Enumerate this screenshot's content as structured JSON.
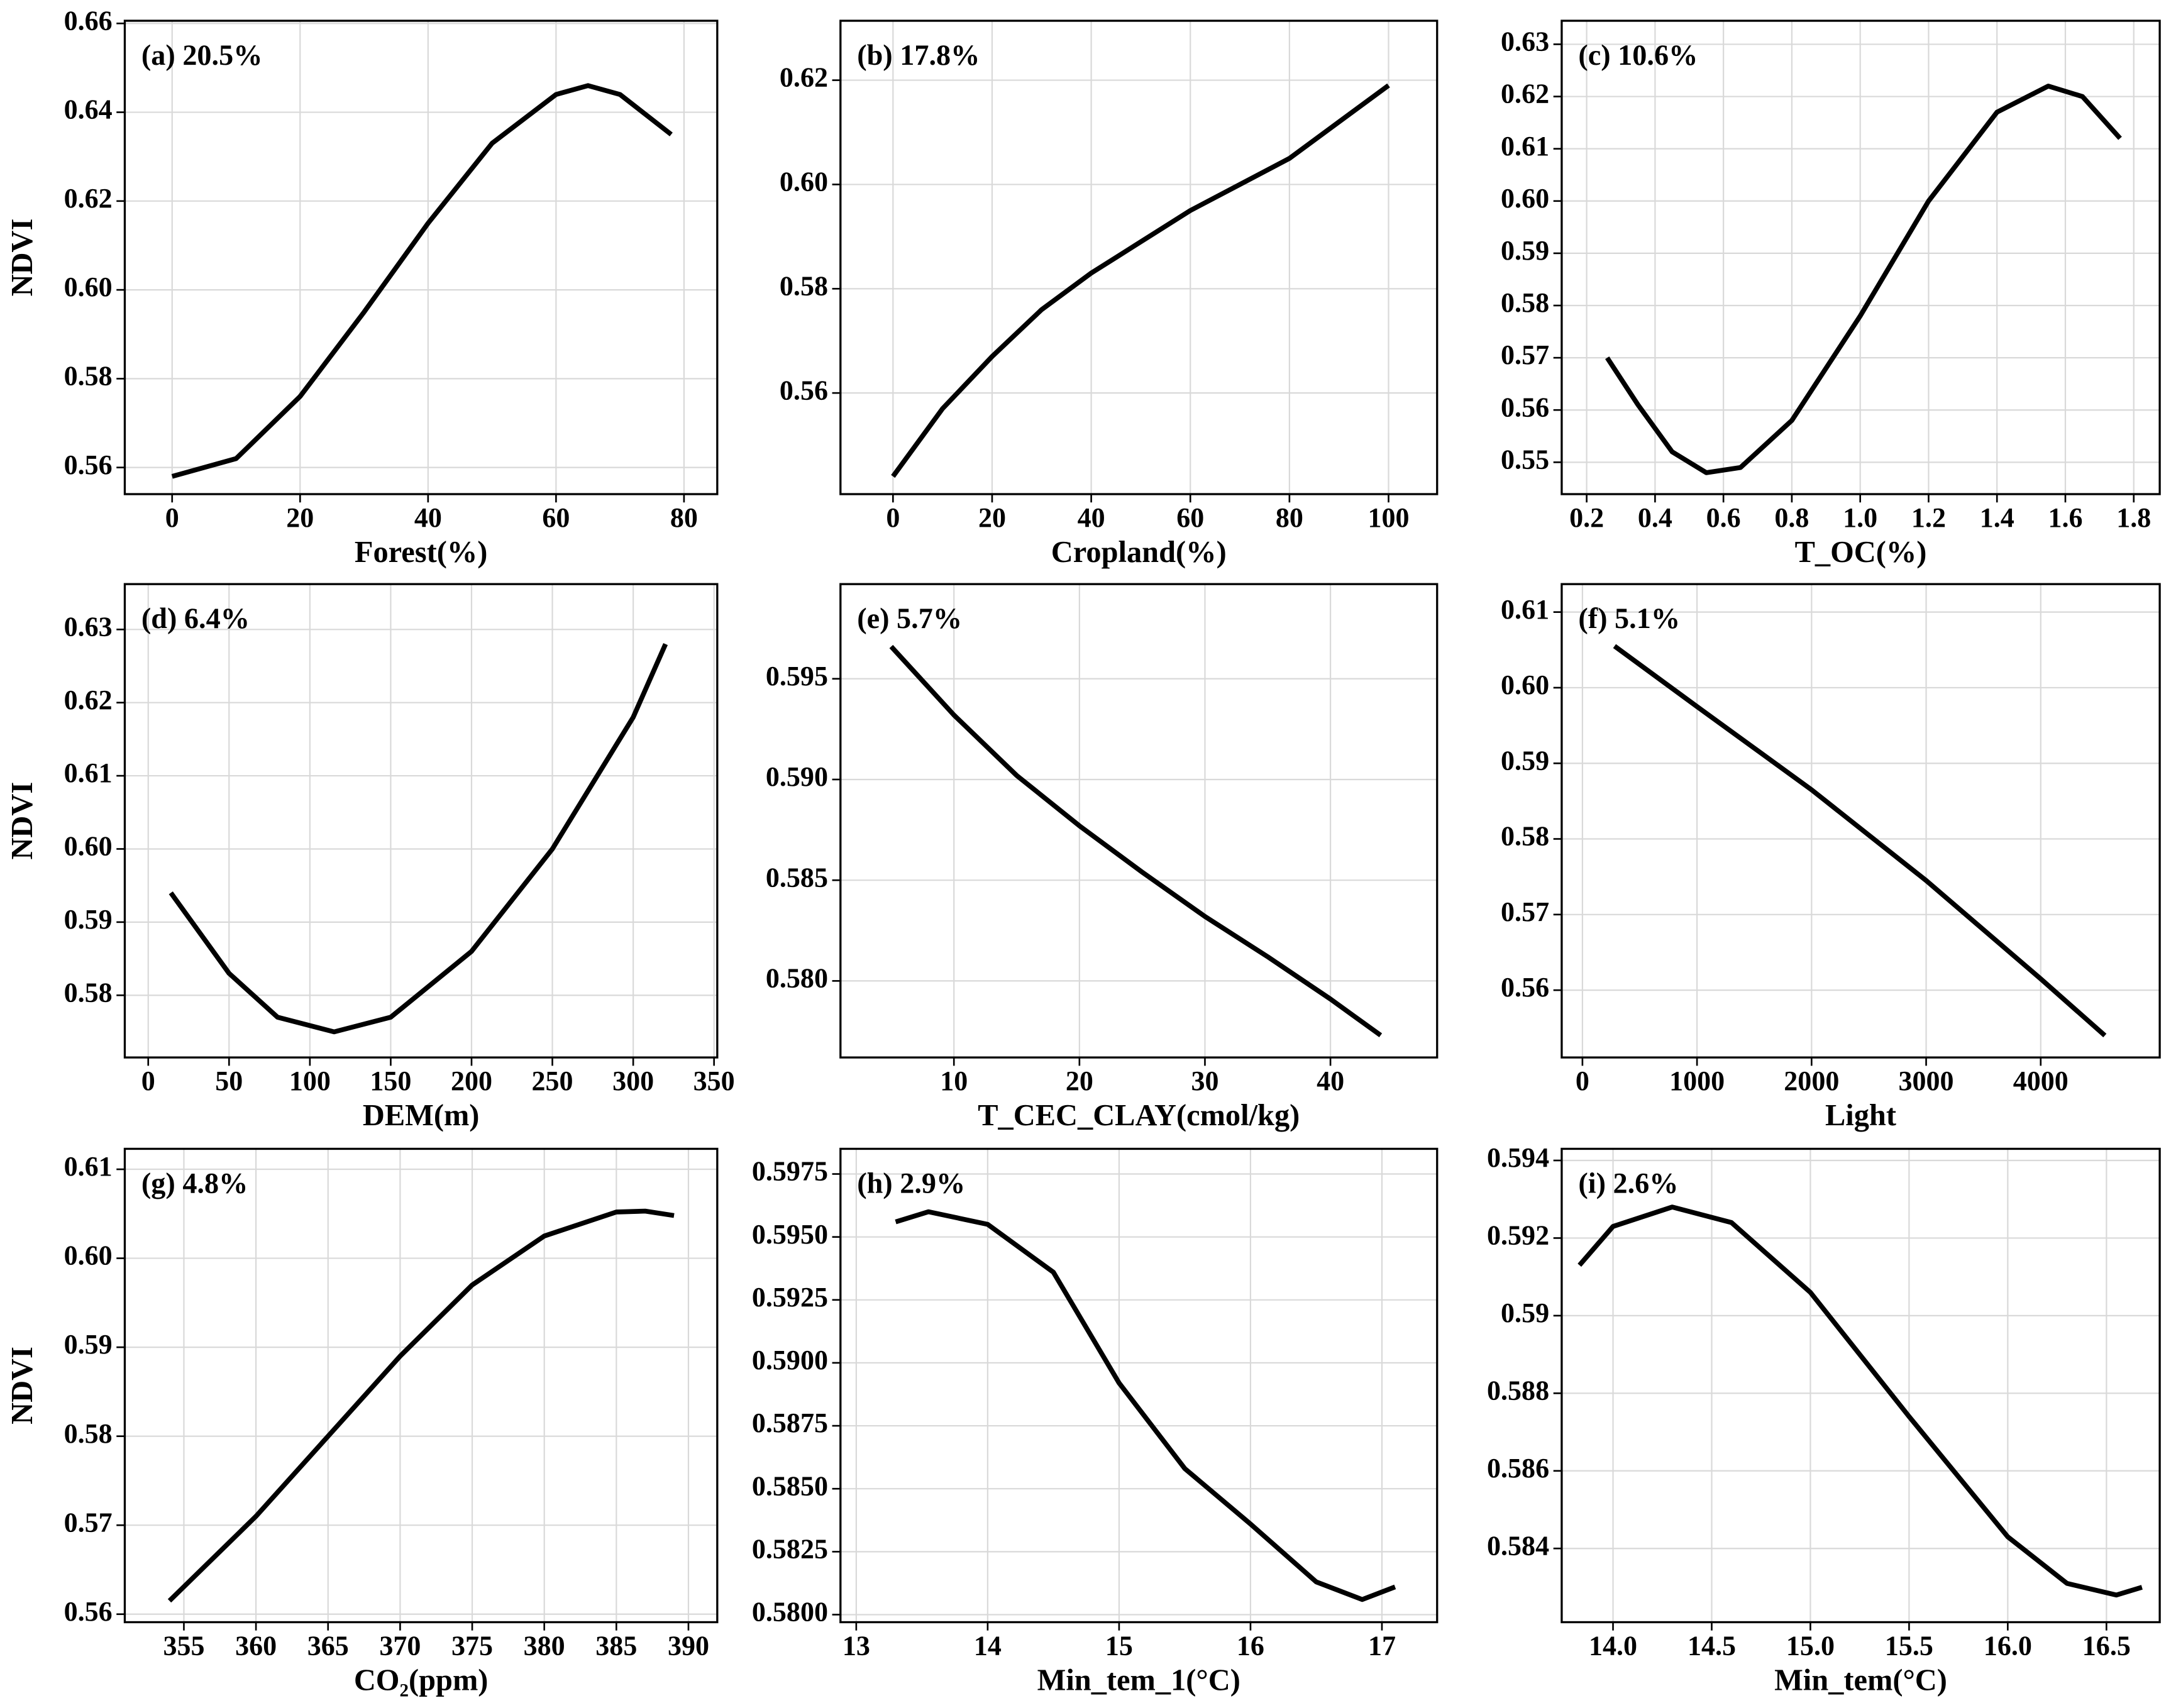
{
  "chart_data": [
    {
      "type": "line",
      "annotation": "(a) 20.5%",
      "xlabel": "Forest(%)",
      "ylabel": "NDVI",
      "color": "#000000",
      "grid": true,
      "x": [
        0,
        10,
        20,
        30,
        40,
        50,
        60,
        65,
        70,
        78
      ],
      "values": [
        0.558,
        0.562,
        0.576,
        0.595,
        0.615,
        0.633,
        0.644,
        0.646,
        0.644,
        0.635
      ],
      "xlim": [
        -7.4,
        85.2
      ],
      "ylim": [
        0.554,
        0.6606
      ],
      "xticks": [
        0,
        20,
        40,
        60,
        80
      ],
      "yticks": [
        0.56,
        0.58,
        {
          "value": 0.6,
          "label": "0.60"
        },
        0.62,
        0.64,
        0.66
      ]
    },
    {
      "type": "line",
      "annotation": "(b) 17.8%",
      "xlabel": "Cropland(%)",
      "color": "#000000",
      "grid": true,
      "x": [
        0,
        10,
        20,
        30,
        40,
        50,
        60,
        70,
        80,
        90,
        100
      ],
      "values": [
        0.544,
        0.557,
        0.567,
        0.576,
        0.583,
        0.589,
        0.595,
        0.6,
        0.605,
        0.612,
        0.619
      ],
      "xlim": [
        -10.6,
        109.8
      ],
      "ylim": [
        0.5406,
        0.6314
      ],
      "xticks": [
        0,
        20,
        40,
        60,
        80,
        100
      ],
      "yticks": [
        0.56,
        0.58,
        {
          "value": 0.6,
          "label": "0.60"
        },
        0.62
      ]
    },
    {
      "type": "line",
      "annotation": "(c) 10.6%",
      "xlabel": "T_OC(%)",
      "color": "#000000",
      "grid": true,
      "x": [
        0.26,
        0.35,
        0.45,
        0.55,
        0.65,
        0.8,
        1.0,
        1.2,
        1.4,
        1.55,
        1.65,
        1.76
      ],
      "values": [
        0.57,
        0.561,
        0.552,
        0.548,
        0.549,
        0.558,
        0.578,
        0.6,
        0.617,
        0.622,
        0.62,
        0.612
      ],
      "xlim": [
        0.127,
        1.876
      ],
      "ylim": [
        0.5439,
        0.6345
      ],
      "xticks": [
        0.2,
        0.4,
        0.6,
        0.8,
        {
          "value": 1,
          "label": "1.0"
        },
        1.2,
        1.4,
        1.6,
        1.8
      ],
      "yticks": [
        0.55,
        0.56,
        0.57,
        0.58,
        0.59,
        {
          "value": 0.6,
          "label": "0.60"
        },
        0.61,
        0.62,
        0.63
      ]
    },
    {
      "type": "line",
      "annotation": "(d) 6.4%",
      "xlabel": "DEM(m)",
      "ylabel": "NDVI",
      "color": "#000000",
      "grid": true,
      "x": [
        14,
        50,
        80,
        115,
        150,
        200,
        250,
        300,
        320
      ],
      "values": [
        0.594,
        0.583,
        0.577,
        0.575,
        0.577,
        0.586,
        0.6,
        0.618,
        0.628
      ],
      "xlim": [
        -14.5,
        352
      ],
      "ylim": [
        0.5715,
        0.6362
      ],
      "xticks": [
        0,
        50,
        100,
        150,
        200,
        250,
        300,
        350
      ],
      "yticks": [
        0.58,
        0.59,
        {
          "value": 0.6,
          "label": "0.60"
        },
        0.61,
        0.62,
        0.63
      ]
    },
    {
      "type": "line",
      "annotation": "(e) 5.7%",
      "xlabel": "T_CEC_CLAY(cmol/kg)",
      "color": "#000000",
      "grid": true,
      "x": [
        5,
        10,
        15,
        20,
        25,
        30,
        35,
        40,
        44
      ],
      "values": [
        0.5966,
        0.5932,
        0.5902,
        0.5877,
        0.5854,
        0.5832,
        0.5812,
        0.5791,
        0.5773
      ],
      "xlim": [
        0.96,
        48.5
      ],
      "ylim": [
        0.5762,
        0.5997
      ],
      "xticks": [
        10,
        20,
        30,
        40
      ],
      "yticks": [
        {
          "value": 0.58,
          "label": "0.580"
        },
        0.585,
        {
          "value": 0.59,
          "label": "0.590"
        },
        0.595
      ]
    },
    {
      "type": "line",
      "annotation": "(f) 5.1%",
      "xlabel": "Light",
      "color": "#000000",
      "grid": true,
      "x": [
        280,
        1000,
        2000,
        3000,
        4000,
        4560
      ],
      "values": [
        0.6055,
        0.5975,
        0.5865,
        0.5745,
        0.5615,
        0.554
      ],
      "xlim": [
        -181,
        5039
      ],
      "ylim": [
        0.5511,
        0.6137
      ],
      "xticks": [
        0,
        1000,
        2000,
        3000,
        4000
      ],
      "yticks": [
        0.56,
        0.57,
        0.58,
        0.59,
        {
          "value": 0.6,
          "label": "0.60"
        },
        0.61
      ]
    },
    {
      "type": "line",
      "annotation": "(g) 4.8%",
      "xlabel": "CO₂(ppm)",
      "ylabel": "NDVI",
      "color": "#000000",
      "grid": true,
      "x": [
        354,
        360,
        365,
        370,
        375,
        380,
        385,
        387,
        389
      ],
      "values": [
        0.5615,
        0.571,
        0.58,
        0.589,
        0.597,
        0.6025,
        0.6052,
        0.6053,
        0.6048
      ],
      "xlim": [
        350.9,
        392
      ],
      "ylim": [
        0.5591,
        0.6123
      ],
      "xticks": [
        355,
        360,
        365,
        370,
        375,
        380,
        385,
        390
      ],
      "yticks": [
        0.56,
        0.57,
        0.58,
        0.59,
        {
          "value": 0.6,
          "label": "0.60"
        },
        0.61
      ]
    },
    {
      "type": "line",
      "annotation": "(h) 2.9%",
      "xlabel": "Min_tem_1(°C)",
      "color": "#000000",
      "grid": true,
      "x": [
        13.3,
        13.55,
        14,
        14.5,
        15,
        15.5,
        16,
        16.5,
        16.85,
        17.1
      ],
      "values": [
        0.5956,
        0.596,
        0.5955,
        0.5936,
        0.5892,
        0.5858,
        0.5836,
        0.5813,
        0.5806,
        0.5811
      ],
      "xlim": [
        12.88,
        17.42
      ],
      "ylim": [
        0.5797,
        0.5985
      ],
      "xticks": [
        13,
        14,
        15,
        16,
        17
      ],
      "yticks": [
        {
          "value": 0.58,
          "label": "0.5800"
        },
        0.5825,
        {
          "value": 0.585,
          "label": "0.5850"
        },
        0.5875,
        {
          "value": 0.59,
          "label": "0.5900"
        },
        0.5925,
        {
          "value": 0.595,
          "label": "0.5950"
        },
        0.5975
      ]
    },
    {
      "type": "line",
      "annotation": "(i) 2.6%",
      "xlabel": "Min_tem(°C)",
      "color": "#000000",
      "grid": true,
      "x": [
        13.83,
        14.0,
        14.3,
        14.6,
        15.0,
        15.5,
        16.0,
        16.3,
        16.55,
        16.68
      ],
      "values": [
        0.5913,
        0.5923,
        0.5928,
        0.5924,
        0.5906,
        0.5874,
        0.5843,
        0.5831,
        0.5828,
        0.583
      ],
      "xlim": [
        13.74,
        16.77
      ],
      "ylim": [
        0.5821,
        0.5943
      ],
      "xticks": [
        {
          "value": 14,
          "label": "14.0"
        },
        14.5,
        {
          "value": 15,
          "label": "15.0"
        },
        15.5,
        {
          "value": 16,
          "label": "16.0"
        },
        16.5
      ],
      "yticks": [
        0.584,
        0.586,
        0.588,
        0.59,
        0.592,
        0.594
      ]
    }
  ]
}
